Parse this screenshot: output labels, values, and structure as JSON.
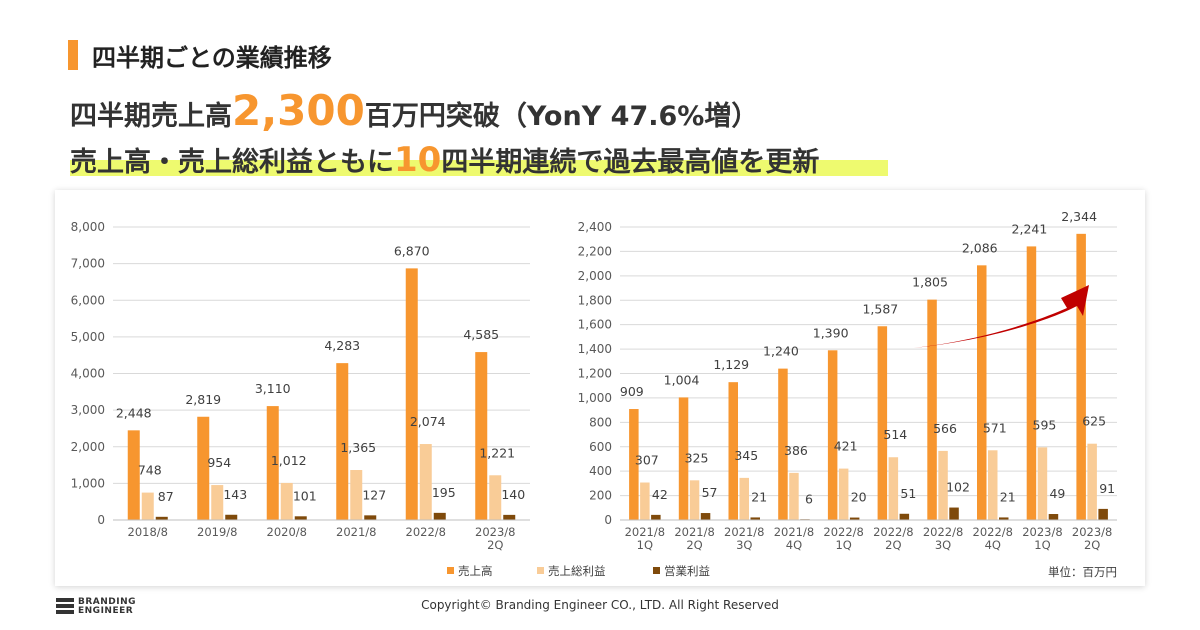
{
  "header": {
    "title": "四半期ごとの業績推移",
    "headline1_prefix": "四半期売上高",
    "headline1_number": "2,300",
    "headline1_suffix": "百万円突破（YonY 47.6%増）",
    "headline2_prefix": "売上高・売上総利益ともに",
    "headline2_number": "10",
    "headline2_suffix": "四半期連続で過去最高値を更新"
  },
  "colors": {
    "sales": "#f7962f",
    "gross_profit": "#f9cc97",
    "operating_profit": "#7f4a0b",
    "arrow": "#c00000",
    "highlight": "#eefa6f"
  },
  "chart_data": [
    {
      "type": "bar",
      "categories": [
        "2018/8",
        "2019/8",
        "2020/8",
        "2021/8",
        "2022/8",
        "2023/8\n2Q"
      ],
      "series": [
        {
          "name": "売上高",
          "values": [
            2448,
            2819,
            3110,
            4283,
            6870,
            4585
          ],
          "labels": [
            "2,448",
            "2,819",
            "3,110",
            "4,283",
            "6,870",
            "4,585"
          ]
        },
        {
          "name": "売上総利益",
          "values": [
            748,
            954,
            1012,
            1365,
            2074,
            1221
          ],
          "labels": [
            "748",
            "954",
            "1,012",
            "1,365",
            "2,074",
            "1,221"
          ]
        },
        {
          "name": "営業利益",
          "values": [
            87,
            143,
            101,
            127,
            195,
            140
          ],
          "labels": [
            "87",
            "143",
            "101",
            "127",
            "195",
            "140"
          ]
        }
      ],
      "ylim": [
        0,
        8000
      ],
      "yticks": [
        "0",
        "1,000",
        "2,000",
        "3,000",
        "4,000",
        "5,000",
        "6,000",
        "7,000",
        "8,000"
      ],
      "grid": true
    },
    {
      "type": "bar",
      "categories": [
        "2021/8\n1Q",
        "2021/8\n2Q",
        "2021/8\n3Q",
        "2021/8\n4Q",
        "2022/8\n1Q",
        "2022/8\n2Q",
        "2022/8\n3Q",
        "2022/8\n4Q",
        "2023/8\n1Q",
        "2023/8\n2Q"
      ],
      "series": [
        {
          "name": "売上高",
          "values": [
            909,
            1004,
            1129,
            1240,
            1390,
            1587,
            1805,
            2086,
            2241,
            2344
          ],
          "labels": [
            "909",
            "1,004",
            "1,129",
            "1,240",
            "1,390",
            "1,587",
            "1,805",
            "2,086",
            "2,241",
            "2,344"
          ]
        },
        {
          "name": "売上総利益",
          "values": [
            307,
            325,
            345,
            386,
            421,
            514,
            566,
            571,
            595,
            625
          ],
          "labels": [
            "307",
            "325",
            "345",
            "386",
            "421",
            "514",
            "566",
            "571",
            "595",
            "625"
          ]
        },
        {
          "name": "営業利益",
          "values": [
            42,
            57,
            21,
            6,
            20,
            51,
            102,
            21,
            49,
            91
          ],
          "labels": [
            "42",
            "57",
            "21",
            "6",
            "20",
            "51",
            "102",
            "21",
            "49",
            "91"
          ]
        }
      ],
      "ylim": [
        0,
        2400
      ],
      "yticks": [
        "0",
        "200",
        "400",
        "600",
        "800",
        "1,000",
        "1,200",
        "1,400",
        "1,600",
        "1,800",
        "2,000",
        "2,200",
        "2,400"
      ],
      "grid": true,
      "legend": "bottom",
      "unit_note": "単位：百万円"
    }
  ],
  "footer": {
    "logo_line1": "BRANDING",
    "logo_line2": "ENGINEER",
    "copyright": "Copyright© Branding Engineer CO., LTD. All Right Reserved"
  }
}
